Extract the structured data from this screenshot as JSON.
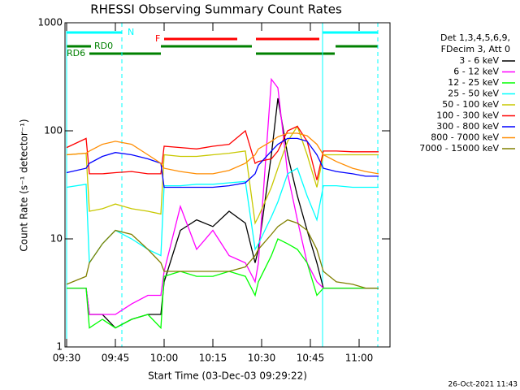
{
  "chart_data": {
    "type": "line",
    "title": "RHESSI Observing Summary Count Rates",
    "xlabel": "Start Time (03-Dec-03 09:29:22)",
    "ylabel": "Count Rate (s⁻¹ detector⁻¹)",
    "legend_header": [
      "Det 1,3,4,5,6,9,",
      "FDecim 3, Att 0"
    ],
    "annotations": [
      "N",
      "F",
      "RD0",
      "RD6"
    ],
    "footer": "26-Oct-2021 11:43",
    "log_y": true,
    "xlim": [
      "09:29:30",
      "11:09:30"
    ],
    "xticks": [
      "09:30",
      "09:45",
      "10:00",
      "10:15",
      "10:30",
      "10:45",
      "11:00"
    ],
    "ylim": [
      1,
      1000
    ],
    "yticks": [
      1,
      10,
      100,
      1000
    ],
    "x": [
      "09:30",
      "09:36",
      "09:37",
      "09:41",
      "09:45",
      "09:50",
      "09:55",
      "09:59",
      "10:00",
      "10:05",
      "10:10",
      "10:15",
      "10:20",
      "10:25",
      "10:28",
      "10:29",
      "10:33",
      "10:35",
      "10:38",
      "10:41",
      "10:44",
      "10:47",
      "10:49",
      "10:53",
      "10:58",
      "11:02",
      "11:06"
    ],
    "series": [
      {
        "name": "3 - 6 keV",
        "color": "#000000",
        "values": [
          3.5,
          3.5,
          2,
          2,
          1.5,
          1.8,
          2,
          2,
          4,
          12,
          15,
          13,
          18,
          14,
          6,
          8,
          60,
          200,
          60,
          25,
          12,
          6,
          3.5,
          3.5,
          3.5,
          3.5,
          3.5
        ]
      },
      {
        "name": "6 - 12 keV",
        "color": "#ff00ff",
        "values": [
          3.5,
          3.5,
          2,
          2,
          2,
          2.5,
          3,
          3,
          5,
          20,
          8,
          12,
          7,
          6,
          4,
          6,
          300,
          250,
          40,
          15,
          6,
          4,
          3.5,
          3.5,
          3.5,
          3.5,
          3.5
        ]
      },
      {
        "name": "12 - 25 keV",
        "color": "#00ff00",
        "values": [
          3.5,
          3.5,
          1.5,
          1.8,
          1.5,
          1.8,
          2,
          1.5,
          4.5,
          5,
          4.5,
          4.5,
          5,
          4.5,
          3,
          4,
          7,
          10,
          9,
          8,
          6,
          3,
          3.5,
          3.5,
          3.5,
          3.5,
          3.5
        ]
      },
      {
        "name": "25 - 50 keV",
        "color": "#00ffff",
        "values": [
          30,
          32,
          6,
          9,
          12,
          10,
          8,
          7,
          31,
          31,
          32,
          32,
          33,
          34,
          8,
          9,
          16,
          22,
          40,
          45,
          25,
          15,
          31,
          31,
          30,
          30,
          30
        ]
      },
      {
        "name": "50 - 100 keV",
        "color": "#c8c800",
        "values": [
          60,
          62,
          18,
          19,
          21,
          19,
          18,
          17,
          60,
          58,
          58,
          60,
          62,
          65,
          14,
          16,
          30,
          45,
          80,
          110,
          60,
          30,
          60,
          60,
          60,
          60,
          60
        ]
      },
      {
        "name": "100 - 300 keV",
        "color": "#ff0000",
        "values": [
          70,
          85,
          40,
          40,
          41,
          42,
          40,
          40,
          72,
          70,
          68,
          72,
          75,
          100,
          50,
          52,
          55,
          65,
          100,
          110,
          80,
          35,
          65,
          65,
          64,
          64,
          64
        ]
      },
      {
        "name": "300 - 800 keV",
        "color": "#0000ff",
        "values": [
          41,
          45,
          50,
          58,
          63,
          60,
          55,
          50,
          30,
          30,
          30,
          30,
          31,
          33,
          40,
          48,
          65,
          75,
          85,
          85,
          80,
          60,
          45,
          42,
          40,
          38,
          38
        ]
      },
      {
        "name": "800 - 7000 keV",
        "color": "#ff8c00",
        "values": [
          60,
          62,
          65,
          75,
          80,
          75,
          60,
          50,
          45,
          42,
          40,
          40,
          43,
          50,
          60,
          68,
          80,
          88,
          95,
          95,
          90,
          75,
          60,
          52,
          45,
          42,
          40
        ]
      },
      {
        "name": "7000 - 15000 keV",
        "color": "#808000",
        "values": [
          3.8,
          4.5,
          6,
          9,
          12,
          11,
          8,
          6,
          5,
          5,
          5,
          5,
          5,
          5.5,
          7,
          8,
          11,
          13,
          15,
          14,
          12,
          8,
          5,
          4,
          3.8,
          3.5,
          3.5
        ]
      }
    ]
  }
}
